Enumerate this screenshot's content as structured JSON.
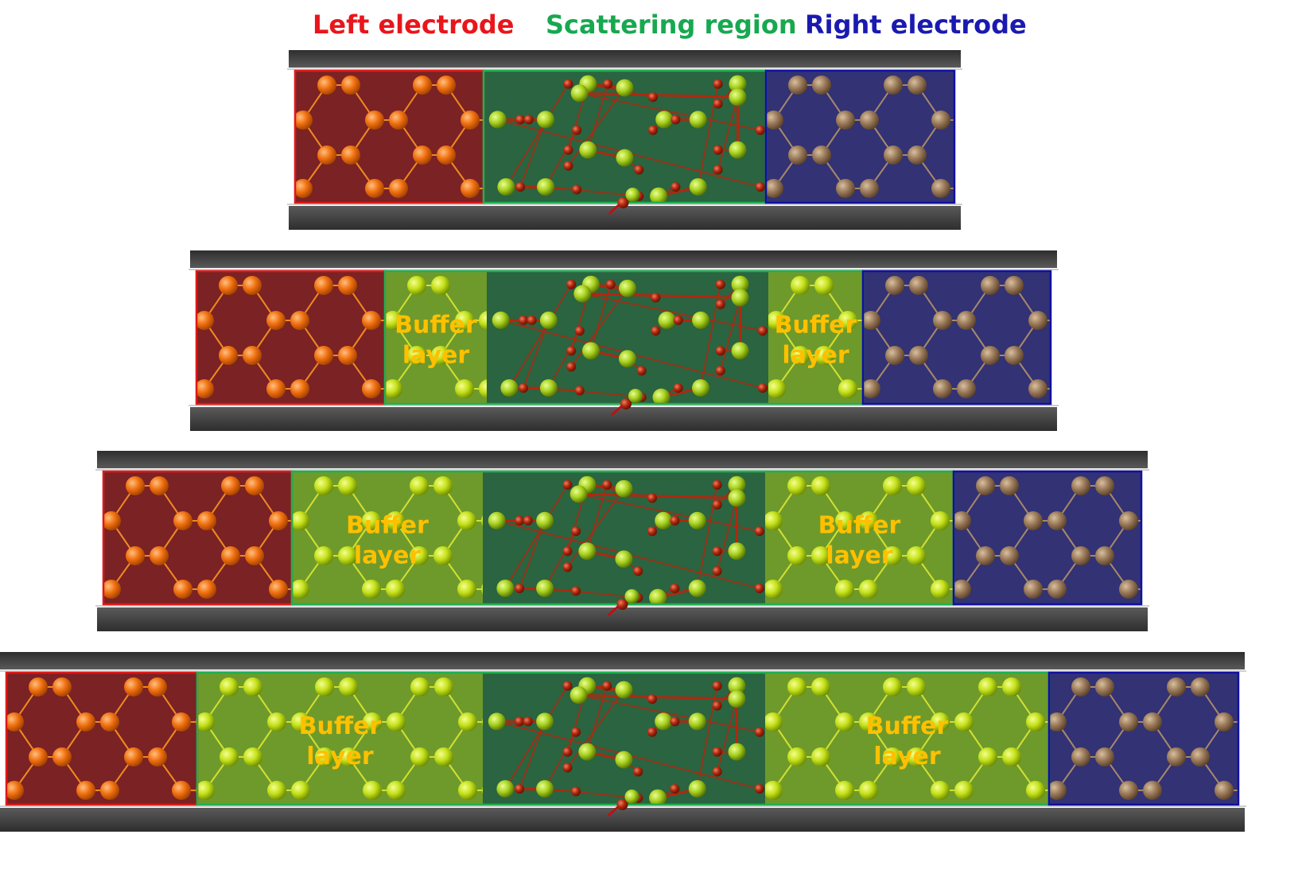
{
  "labels": {
    "left_electrode": "Left electrode",
    "scattering_region": "Scattering region",
    "right_electrode": "Right electrode",
    "buffer_line1": "Buffer",
    "buffer_line2": "layer"
  },
  "colors": {
    "left_label": "#e8161c",
    "scatter_label": "#18a850",
    "right_label": "#1a1ab0",
    "buffer_text": "#ffc000",
    "left_fill": "#7a2224",
    "left_border": "#e01818",
    "left_atom": "#f07010",
    "left_bond": "#f08a20",
    "buffer_fill": "#6e9a2c",
    "buffer_atom": "#c4e01a",
    "buffer_bond": "#d2e030",
    "center_fill": "#2a6440",
    "center_border": "#1eb050",
    "center_atom": "#a8d020",
    "oxygen_atom": "#b02810",
    "right_fill": "#323274",
    "right_border": "#1010a0",
    "right_atom": "#9a7a5a",
    "right_bond": "#a8886a",
    "bar": "#3a3a3a"
  },
  "panels": [
    {
      "id": "panel-1",
      "buffer": false
    },
    {
      "id": "panel-2",
      "buffer": true
    },
    {
      "id": "panel-3",
      "buffer": true
    },
    {
      "id": "panel-4",
      "buffer": true
    }
  ]
}
